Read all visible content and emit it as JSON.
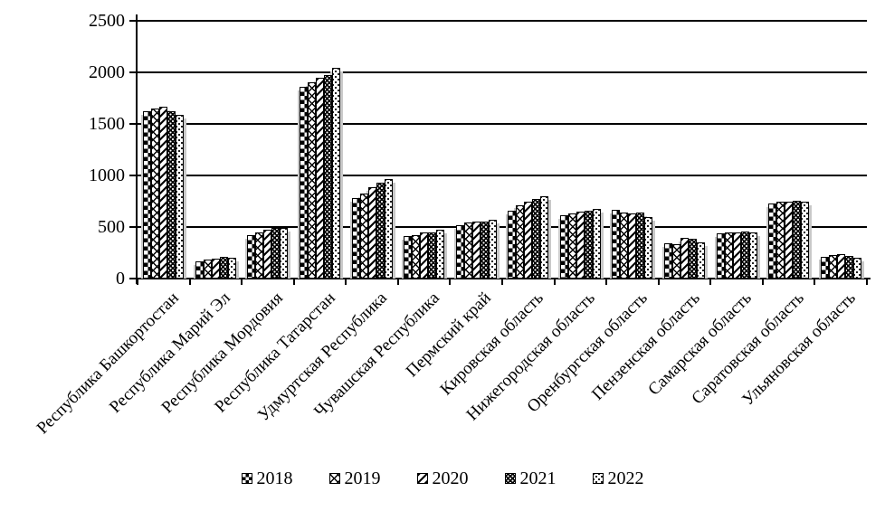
{
  "chart_data": {
    "type": "bar",
    "title": "",
    "xlabel": "",
    "ylabel": "",
    "ylim": [
      0,
      2500
    ],
    "yticks": [
      0,
      500,
      1000,
      1500,
      2000,
      2500
    ],
    "grid": true,
    "legend_position": "bottom",
    "categories": [
      "Республика Башкортостан",
      "Республика Марий Эл",
      "Республика Мордовия",
      "Республика Татарстан",
      "Удмуртская Республика",
      "Чувашская Республика",
      "Пермский край",
      "Кировская область",
      "Нижегородская область",
      "Оренбургская область",
      "Пензенская область",
      "Самарская область",
      "Саратовская область",
      "Ульяновская область"
    ],
    "series": [
      {
        "name": "2018",
        "pattern": "checkerboard",
        "values": [
          1620,
          170,
          425,
          1860,
          780,
          410,
          520,
          660,
          615,
          670,
          340,
          435,
          730,
          215
        ]
      },
      {
        "name": "2019",
        "pattern": "diamond-lattice",
        "values": [
          1650,
          180,
          450,
          1905,
          825,
          420,
          540,
          715,
          630,
          640,
          335,
          445,
          745,
          230
        ]
      },
      {
        "name": "2020",
        "pattern": "diagonal-stripes",
        "values": [
          1670,
          195,
          475,
          1950,
          885,
          445,
          550,
          745,
          645,
          635,
          395,
          450,
          750,
          240
        ]
      },
      {
        "name": "2021",
        "pattern": "black-with-white-dots",
        "values": [
          1620,
          210,
          490,
          1970,
          930,
          450,
          555,
          775,
          660,
          640,
          390,
          455,
          755,
          220
        ]
      },
      {
        "name": "2022",
        "pattern": "white-with-black-dots",
        "values": [
          1590,
          205,
          495,
          2040,
          965,
          470,
          570,
          795,
          675,
          600,
          350,
          450,
          750,
          205
        ]
      }
    ]
  },
  "colors": {
    "axis_line": "#000000",
    "bar_fill_fg": "#000000",
    "bar_fill_bg": "#ffffff",
    "bar_shadow": "#c9c9c9",
    "background": "#ffffff"
  }
}
